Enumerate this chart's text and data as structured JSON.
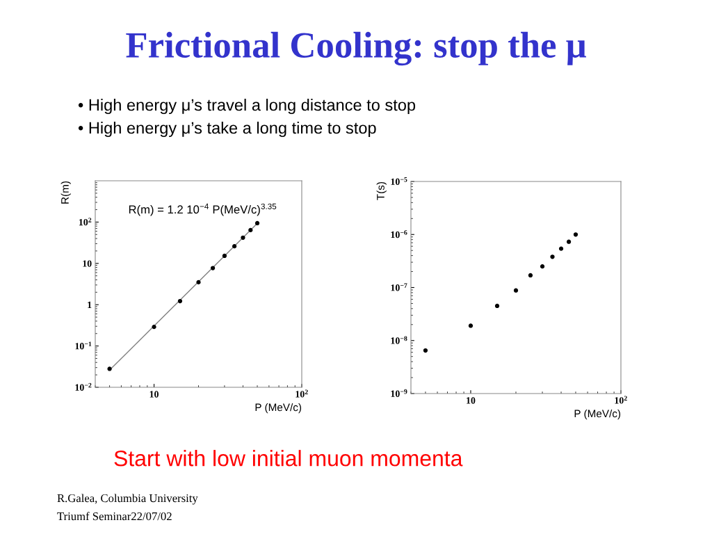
{
  "chart_data": [
    {
      "type": "other",
      "title": "Frictional Cooling: stop the μ",
      "annotations": [
        "• High energy μ’s travel a long distance to stop",
        "• High energy μ’s take a long time to stop",
        "Start with low initial muon momenta",
        "R.Galea, Columbia University",
        "Triumf Seminar22/07/02"
      ]
    },
    {
      "type": "scatter",
      "log": "xy",
      "marker": "circle",
      "xlabel": "P (MeV/c)",
      "ylabel": "R(m)",
      "xlim": [
        4,
        100
      ],
      "ylim": [
        0.01,
        1000
      ],
      "xticks": [
        10,
        {
          "value": 100,
          "label": "10$^{2}$"
        }
      ],
      "yticks": [
        {
          "value": 0.01,
          "label": "10$^{−2}$"
        },
        {
          "value": 0.1,
          "label": "10$^{−1}$"
        },
        1,
        10,
        {
          "value": 100,
          "label": "10$^{2}$"
        }
      ],
      "annotations": [
        "R(m) = 1.2 10$^{−4}$ P(MeV/c)$^{3.35}$"
      ],
      "series": [
        {
          "type": "line",
          "marker": "none",
          "color": "#808080",
          "x": [
            5,
            50
          ],
          "values": [
            0.026,
            93
          ]
        },
        {
          "color": "#000000",
          "x": [
            5,
            10,
            15,
            20,
            25,
            30,
            35,
            40,
            45,
            50
          ],
          "values": [
            0.028,
            0.29,
            1.22,
            3.5,
            7.7,
            15.2,
            26,
            42,
            64,
            94
          ]
        }
      ]
    },
    {
      "type": "scatter",
      "log": "xy",
      "marker": "circle",
      "xlabel": "P (MeV/c)",
      "ylabel": "T(s)",
      "xlim": [
        4,
        100
      ],
      "ylim": [
        1e-09,
        1e-05
      ],
      "xticks": [
        10,
        {
          "value": 100,
          "label": "10$^{2}$"
        }
      ],
      "yticks": [
        {
          "value": 1e-09,
          "label": "10$^{−9}$"
        },
        {
          "value": 1e-08,
          "label": "10$^{−8}$"
        },
        {
          "value": 1e-07,
          "label": "10$^{−7}$"
        },
        {
          "value": 1e-06,
          "label": "10$^{−6}$"
        },
        {
          "value": 1e-05,
          "label": "10$^{−5}$"
        }
      ],
      "series": [
        {
          "color": "#000000",
          "x": [
            5,
            10,
            15,
            20,
            25,
            30,
            35,
            40,
            45,
            50
          ],
          "values": [
            6.5e-09,
            1.9e-08,
            4.5e-08,
            8.8e-08,
            1.7e-07,
            2.5e-07,
            3.8e-07,
            5.4e-07,
            7.3e-07,
            1e-06
          ]
        }
      ]
    }
  ]
}
